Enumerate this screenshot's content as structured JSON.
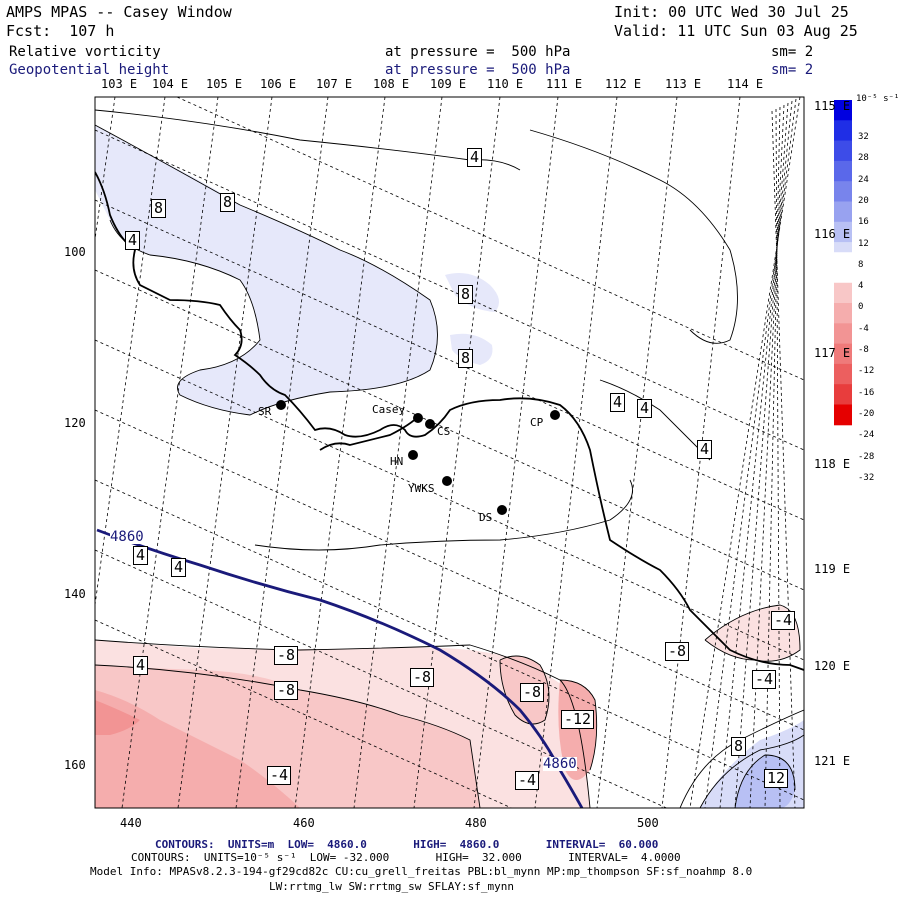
{
  "header": {
    "app_title": "AMPS MPAS -- Casey Window",
    "forecast_label": "Fcst:  107 h",
    "init_line": "Init: 00 UTC Wed 30 Jul 25",
    "valid_line": "Valid: 11 UTC Sun 03 Aug 25",
    "field1_name": "Relative vorticity",
    "field1_level": "at pressure =  500 hPa",
    "field1_smooth": "sm= 2",
    "field2_name": "Geopotential height",
    "field2_level": "at pressure =  500 hPa",
    "field2_smooth": "sm= 2"
  },
  "map": {
    "lon_labels_top": [
      "103 E",
      "104 E",
      "105 E",
      "106 E",
      "107 E",
      "108 E",
      "109 E",
      "110 E",
      "111 E",
      "112 E",
      "113 E",
      "114 E"
    ],
    "lon_labels_right": [
      "115 E",
      "116 E",
      "117 E",
      "118 E",
      "119 E",
      "120 E",
      "121 E"
    ],
    "y_ticks": [
      "100",
      "120",
      "140",
      "160"
    ],
    "x_ticks": [
      "440",
      "460",
      "480",
      "500"
    ],
    "contour_labels_vort": [
      "4",
      "8",
      "8",
      "4",
      "8",
      "8",
      "4",
      "4",
      "4",
      "4",
      "4",
      "4",
      "-4",
      "-8",
      "-8",
      "-8",
      "-8",
      "-8",
      "-12",
      "-4",
      "-4",
      "-4",
      "-4",
      "8",
      "12"
    ],
    "contour_labels_height": [
      "4860",
      "4860"
    ],
    "stations": [
      {
        "name": "SR"
      },
      {
        "name": "Casey"
      },
      {
        "name": "CS"
      },
      {
        "name": "CP"
      },
      {
        "name": "HN"
      },
      {
        "name": "YWKS"
      },
      {
        "name": "DS"
      }
    ]
  },
  "colorbar": {
    "units": "10⁻⁵ s⁻¹",
    "labels": [
      "32",
      "28",
      "24",
      "20",
      "16",
      "12",
      "8",
      "4",
      "0",
      "-4",
      "-8",
      "-12",
      "-16",
      "-20",
      "-24",
      "-28",
      "-32"
    ],
    "colors_positive": [
      "#0000e0",
      "#1f2ee6",
      "#3d4ce8",
      "#5a68ea",
      "#7884ec",
      "#98a2f0",
      "#b8c0f4",
      "#d8dcf8"
    ],
    "colors_negative": [
      "#fbe1e1",
      "#f8c7c7",
      "#f5adad",
      "#f29494",
      "#ef7a7a",
      "#ec5f5f",
      "#e83d3d",
      "#e50000"
    ]
  },
  "footer": {
    "contours1": "CONTOURS:  UNITS=m  LOW=  4860.0       HIGH=  4860.0       INTERVAL=  60.000",
    "contours2": "CONTOURS:  UNITS=10⁻⁵ s⁻¹  LOW= -32.000       HIGH=  32.000       INTERVAL=  4.0000",
    "model_info": "Model Info: MPASv8.2.3-194-gf29cd82c CU:cu_grell_freitas PBL:bl_mynn MP:mp_thompson SF:sf_noahmp 8.0",
    "model_info2": "LW:rrtmg_lw SW:rrtmg_sw SFLAY:sf_mynn"
  }
}
